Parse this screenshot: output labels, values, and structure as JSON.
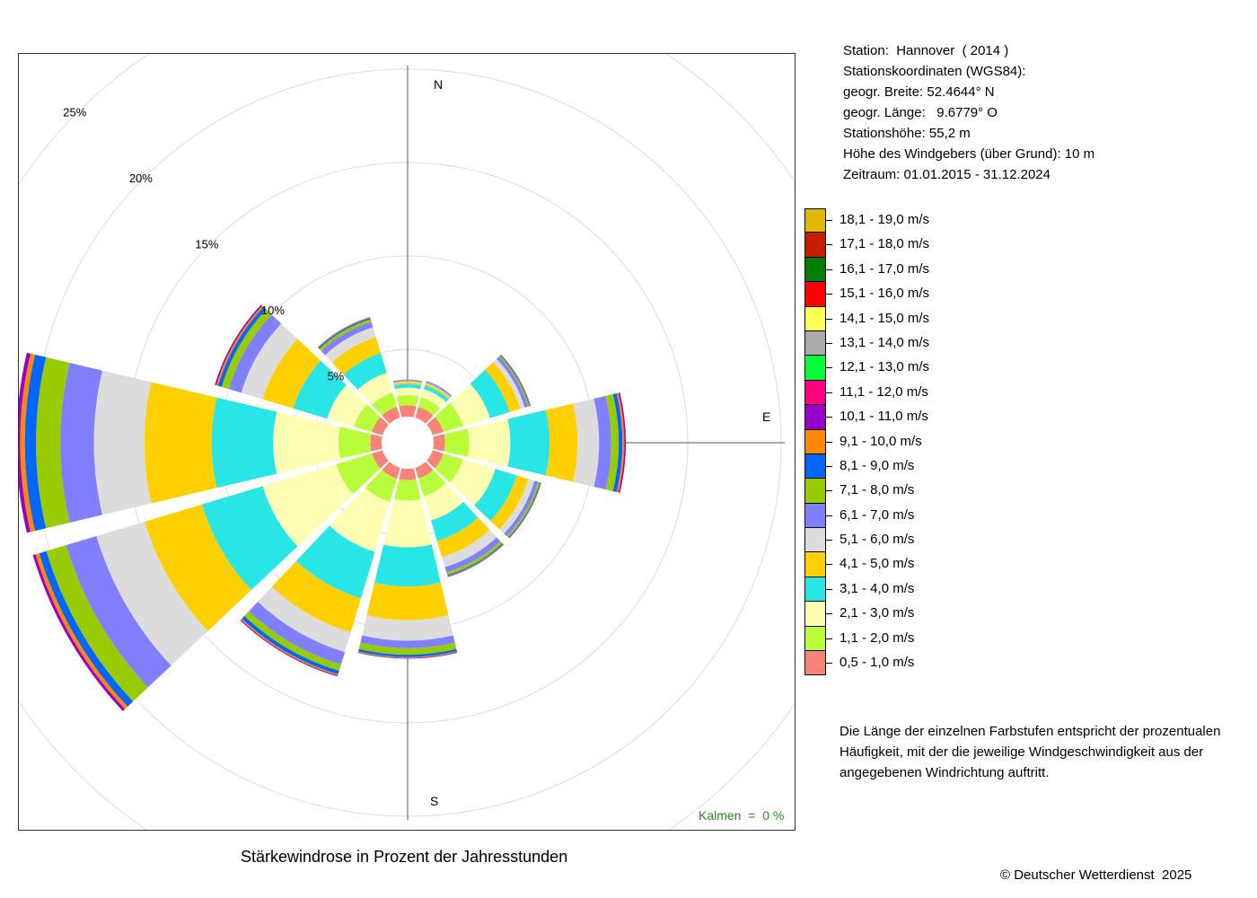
{
  "info": {
    "station": "Station:  Hannover  ( 2014 )",
    "coords_heading": "Stationskoordinaten (WGS84):",
    "latitude": "geogr. Breite: 52.4644° N",
    "longitude": "geogr. Länge:   9.6779° O",
    "altitude": "Stationshöhe: 55,2 m",
    "sensor_height": "Höhe des Windgebers (über Grund): 10 m",
    "period": "Zeitraum: 01.01.2015 - 31.12.2024"
  },
  "note": {
    "line1": "Die Länge der einzelnen Farbstufen entspricht der prozentualen",
    "line2": "Häufigkeit, mit der die jeweilige Windgeschwindigkeit aus der",
    "line3": "angegebenen Windrichtung auftritt."
  },
  "calm_label": "Kalmen  =  0 %",
  "copyright": "© Deutscher Wetterdienst  2025",
  "chart_data": {
    "type": "wind-rose",
    "title": "Stärkewindrose in Prozent der Jahresstunden",
    "unit": "%",
    "directions": [
      "0°",
      "30°",
      "60°",
      "90°",
      "120°",
      "150°",
      "180°",
      "210°",
      "240°",
      "270°",
      "300°",
      "330°"
    ],
    "compass_labels": {
      "north": "N",
      "east": "E",
      "south": "S"
    },
    "ring_values": [
      5,
      10,
      15,
      20,
      25
    ],
    "ring_labels": [
      "5%",
      "10%",
      "15%",
      "20%",
      "25%"
    ],
    "r_max": 25,
    "bins": [
      {
        "label": "0,5 - 1,0 m/s",
        "color": "#F88379"
      },
      {
        "label": "1,1 - 2,0 m/s",
        "color": "#B8FC3A"
      },
      {
        "label": "2,1 - 3,0 m/s",
        "color": "#FFFFB3"
      },
      {
        "label": "3,1 - 4,0 m/s",
        "color": "#28E6E6"
      },
      {
        "label": "4,1 - 5,0 m/s",
        "color": "#FFD000"
      },
      {
        "label": "5,1 - 6,0 m/s",
        "color": "#DCDCDC"
      },
      {
        "label": "6,1 - 7,0 m/s",
        "color": "#8080FF"
      },
      {
        "label": "7,1 - 8,0 m/s",
        "color": "#99CC00"
      },
      {
        "label": "8,1 - 9,0 m/s",
        "color": "#0066FF"
      },
      {
        "label": "9,1 - 10,0 m/s",
        "color": "#FF8800"
      },
      {
        "label": "10,1 - 11,0 m/s",
        "color": "#9900CC"
      },
      {
        "label": "11,1 - 12,0 m/s",
        "color": "#FF0080"
      },
      {
        "label": "12,1 - 13,0 m/s",
        "color": "#00FF33"
      },
      {
        "label": "13,1 - 14,0 m/s",
        "color": "#AAAAAA"
      },
      {
        "label": "14,1 - 15,0 m/s",
        "color": "#FFFF55"
      },
      {
        "label": "15,1 - 16,0 m/s",
        "color": "#FF0000"
      },
      {
        "label": "16,1 - 17,0 m/s",
        "color": "#008000"
      },
      {
        "label": "17,1 - 18,0 m/s",
        "color": "#C81E00"
      },
      {
        "label": "18,1 - 19,0 m/s",
        "color": "#E0B800"
      }
    ],
    "cumulative_radii": {
      "0°": [
        2.0,
        2.55,
        2.95,
        3.15,
        3.25,
        3.3,
        3.34,
        3.36,
        3.37,
        3.38,
        3.39
      ],
      "30°": [
        2.0,
        2.55,
        3.0,
        3.2,
        3.3,
        3.35,
        3.4,
        3.42,
        3.43,
        3.44,
        3.45
      ],
      "60°": [
        2.0,
        3.1,
        4.6,
        5.7,
        6.3,
        6.55,
        6.72,
        6.8,
        6.84,
        6.86,
        6.88
      ],
      "90°": [
        2.0,
        3.3,
        5.5,
        7.6,
        9.1,
        10.25,
        10.9,
        11.3,
        11.5,
        11.6,
        11.68
      ],
      "120°": [
        2.0,
        3.1,
        4.9,
        6.1,
        6.75,
        7.1,
        7.3,
        7.4,
        7.45,
        7.47,
        7.48
      ],
      "150°": [
        2.0,
        3.0,
        4.35,
        5.5,
        6.4,
        6.95,
        7.25,
        7.4,
        7.46,
        7.49,
        7.51
      ],
      "180°": [
        2.0,
        3.1,
        5.6,
        7.7,
        9.5,
        10.6,
        11.0,
        11.35,
        11.48,
        11.53,
        11.56
      ],
      "210°": [
        2.0,
        3.3,
        6.1,
        8.7,
        10.6,
        11.7,
        12.4,
        12.75,
        12.95,
        13.02,
        13.07
      ],
      "240°": [
        2.0,
        4.0,
        8.1,
        11.5,
        14.7,
        17.4,
        19.1,
        20.2,
        20.6,
        20.8,
        20.95
      ],
      "270°": [
        2.0,
        3.7,
        7.2,
        10.5,
        14.1,
        16.8,
        18.6,
        19.9,
        20.5,
        20.75,
        20.95
      ],
      "300°": [
        2.0,
        3.0,
        4.5,
        6.4,
        8.1,
        9.3,
        10.0,
        10.4,
        10.6,
        10.7,
        10.78
      ],
      "330°": [
        2.0,
        2.8,
        3.9,
        5.0,
        5.9,
        6.45,
        6.75,
        6.9,
        6.97,
        7.0,
        7.02
      ]
    }
  }
}
